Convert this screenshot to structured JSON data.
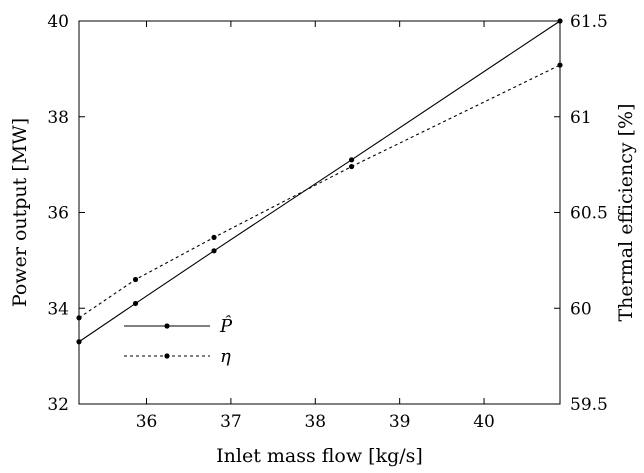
{
  "chart_data": {
    "type": "line",
    "xlabel": "Inlet mass flow [kg/s]",
    "ylabel_left": "Power output [MW]",
    "ylabel_right": "Thermal efficiency [%]",
    "xlim": [
      35.2,
      40.9
    ],
    "ylim_left": [
      32,
      40
    ],
    "ylim_right": [
      59.5,
      61.5
    ],
    "x_ticks": [
      36,
      37,
      38,
      39,
      40
    ],
    "y_ticks_left": [
      32,
      34,
      36,
      38,
      40
    ],
    "y_ticks_right": [
      59.5,
      60,
      60.5,
      61,
      61.5
    ],
    "grid": false,
    "legend_position": "center-left",
    "series": [
      {
        "name": "P̂",
        "axis": "left",
        "style": "solid",
        "color": "#000000",
        "x": [
          35.2,
          35.87,
          36.8,
          38.43,
          40.9
        ],
        "y": [
          33.3,
          34.1,
          35.2,
          37.1,
          40.0
        ]
      },
      {
        "name": "η",
        "axis": "right",
        "style": "dotted",
        "color": "#000000",
        "x": [
          35.2,
          35.87,
          36.8,
          38.43,
          40.9
        ],
        "y": [
          59.95,
          60.15,
          60.37,
          60.74,
          61.27
        ]
      }
    ]
  }
}
